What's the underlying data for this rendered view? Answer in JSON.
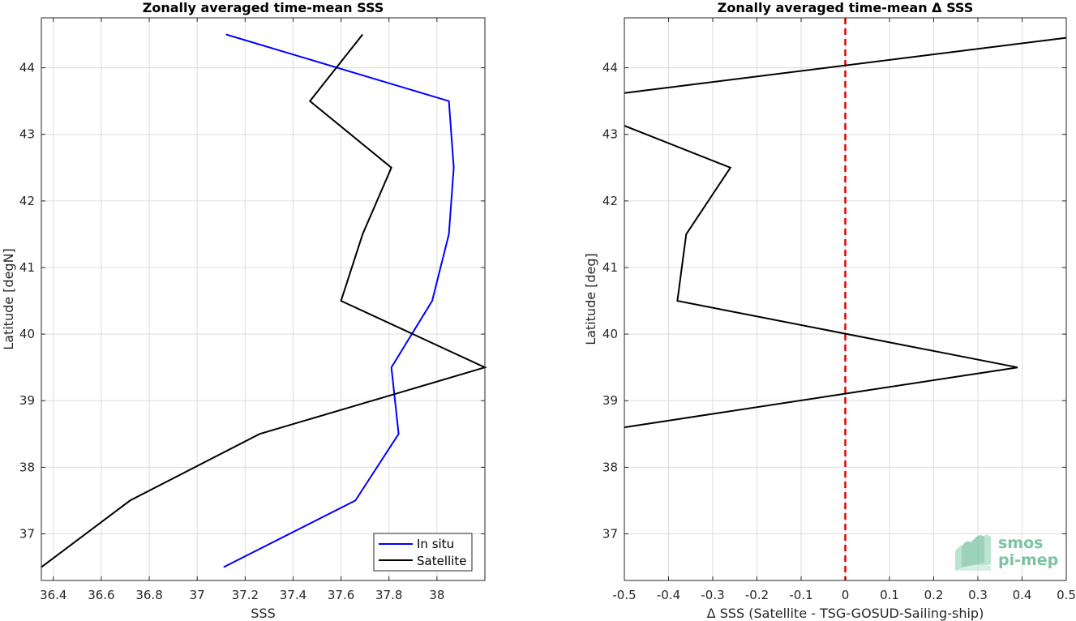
{
  "chart_data": [
    {
      "type": "line",
      "title": "Zonally averaged time-mean SSS",
      "xlabel": "SSS",
      "ylabel": "Latitude [degN]",
      "xlim": [
        36.35,
        38.2
      ],
      "ylim": [
        36.3,
        44.75
      ],
      "xticks": [
        36.4,
        36.6,
        36.8,
        37,
        37.2,
        37.4,
        37.6,
        37.8,
        38
      ],
      "xtick_labels": [
        "36.4",
        "36.6",
        "36.8",
        "37",
        "37.2",
        "37.4",
        "37.6",
        "37.8",
        "38"
      ],
      "yticks": [
        37,
        38,
        39,
        40,
        41,
        42,
        43,
        44
      ],
      "ytick_labels": [
        "37",
        "38",
        "39",
        "40",
        "41",
        "42",
        "43",
        "44"
      ],
      "grid": true,
      "legend": "bottom-right",
      "series": [
        {
          "name": "In situ",
          "color": "#0000ff",
          "points": [
            [
              37.12,
              44.5
            ],
            [
              38.05,
              43.5
            ],
            [
              38.07,
              42.5
            ],
            [
              38.05,
              41.5
            ],
            [
              37.98,
              40.5
            ],
            [
              37.81,
              39.5
            ],
            [
              37.84,
              38.5
            ],
            [
              37.66,
              37.5
            ],
            [
              37.11,
              36.5
            ]
          ]
        },
        {
          "name": "Satellite",
          "color": "#000000",
          "points": [
            [
              37.69,
              44.5
            ],
            [
              37.47,
              43.5
            ],
            [
              37.81,
              42.5
            ],
            [
              37.69,
              41.5
            ],
            [
              37.6,
              40.5
            ],
            [
              38.2,
              39.5
            ],
            [
              37.26,
              38.5
            ],
            [
              36.72,
              37.5
            ],
            [
              36.35,
              36.5
            ]
          ]
        }
      ]
    },
    {
      "type": "line",
      "title": "Zonally averaged time-mean Δ SSS",
      "xlabel": "Δ SSS (Satellite - TSG-GOSUD-Sailing-ship)",
      "ylabel": "Latitude [deg]",
      "xlim": [
        -0.5,
        0.5
      ],
      "ylim": [
        36.3,
        44.75
      ],
      "xticks": [
        -0.5,
        -0.4,
        -0.3,
        -0.2,
        -0.1,
        0,
        0.1,
        0.2,
        0.3,
        0.4,
        0.5
      ],
      "xtick_labels": [
        "-0.5",
        "-0.4",
        "-0.3",
        "-0.2",
        "-0.1",
        "0",
        "0.1",
        "0.2",
        "0.3",
        "0.4",
        "0.5"
      ],
      "yticks": [
        37,
        38,
        39,
        40,
        41,
        42,
        43,
        44
      ],
      "ytick_labels": [
        "37",
        "38",
        "39",
        "40",
        "41",
        "42",
        "43",
        "44"
      ],
      "grid": true,
      "zero_line_color": "#e60000",
      "series": [
        {
          "color": "#000000",
          "points": [
            [
              0.5,
              44.45
            ],
            [
              -0.5,
              43.62
            ],
            [
              null,
              null
            ],
            [
              -0.5,
              43.13
            ],
            [
              -0.26,
              42.5
            ],
            [
              -0.36,
              41.5
            ],
            [
              -0.38,
              40.5
            ],
            [
              0.39,
              39.5
            ],
            [
              -0.5,
              38.6
            ]
          ]
        }
      ]
    }
  ],
  "logo": {
    "line1": "smos",
    "line2": "pi-mep",
    "color": "#7cc3a3"
  }
}
